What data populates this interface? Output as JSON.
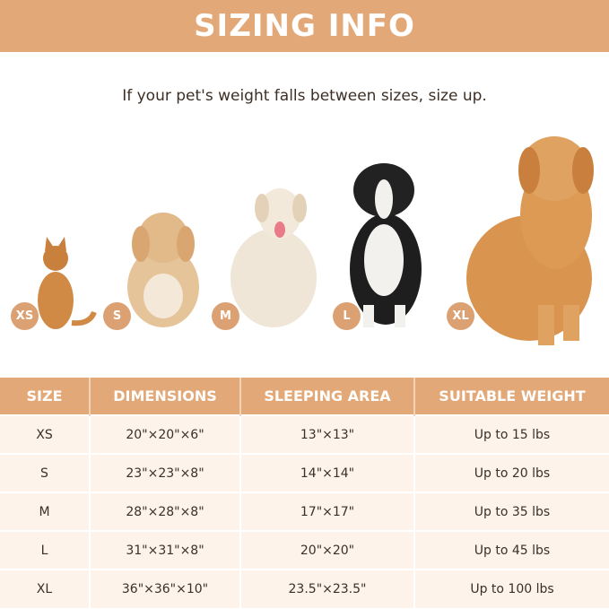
{
  "banner": {
    "title": "SIZING INFO"
  },
  "subtitle": "If your pet's weight falls between sizes, size up.",
  "pets": [
    {
      "size": "XS",
      "animal": "cat",
      "color": "#d08a45"
    },
    {
      "size": "S",
      "animal": "small-dog",
      "color": "#e6c49a"
    },
    {
      "size": "M",
      "animal": "labrador",
      "color": "#efe6d8"
    },
    {
      "size": "L",
      "animal": "border-collie",
      "color": "#222222"
    },
    {
      "size": "XL",
      "animal": "golden-retriever",
      "color": "#d99450"
    }
  ],
  "table": {
    "headers": [
      "SIZE",
      "DIMENSIONS",
      "SLEEPING AREA",
      "SUITABLE WEIGHT"
    ],
    "rows": [
      [
        "XS",
        "20\"×20\"×6\"",
        "13\"×13\"",
        "Up to 15 lbs"
      ],
      [
        "S",
        "23\"×23\"×8\"",
        "14\"×14\"",
        "Up to 20 lbs"
      ],
      [
        "M",
        "28\"×28\"×8\"",
        "17\"×17\"",
        "Up to 35 lbs"
      ],
      [
        "L",
        "31\"×31\"×8\"",
        "20\"×20\"",
        "Up to 45 lbs"
      ],
      [
        "XL",
        "36\"×36\"×10\"",
        "23.5\"×23.5\"",
        "Up to 100 lbs"
      ]
    ]
  },
  "colors": {
    "accent": "#e3a877",
    "row_bg": "#fdf3ea",
    "text": "#3d2f25"
  }
}
